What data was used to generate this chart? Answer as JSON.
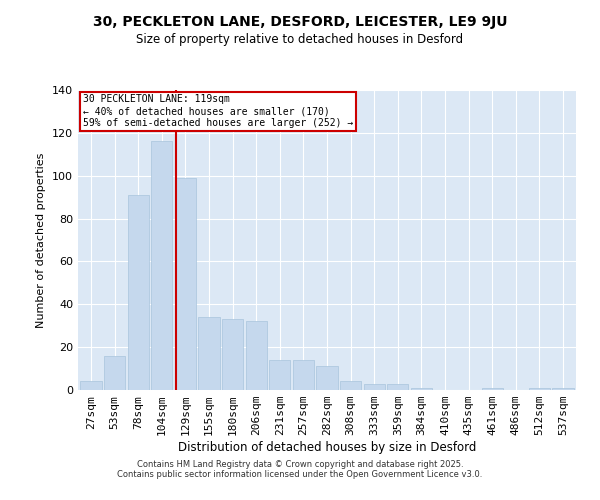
{
  "title": "30, PECKLETON LANE, DESFORD, LEICESTER, LE9 9JU",
  "subtitle": "Size of property relative to detached houses in Desford",
  "xlabel": "Distribution of detached houses by size in Desford",
  "ylabel": "Number of detached properties",
  "categories": [
    "27sqm",
    "53sqm",
    "78sqm",
    "104sqm",
    "129sqm",
    "155sqm",
    "180sqm",
    "206sqm",
    "231sqm",
    "257sqm",
    "282sqm",
    "308sqm",
    "333sqm",
    "359sqm",
    "384sqm",
    "410sqm",
    "435sqm",
    "461sqm",
    "486sqm",
    "512sqm",
    "537sqm"
  ],
  "values": [
    4,
    16,
    91,
    116,
    99,
    34,
    33,
    32,
    14,
    14,
    11,
    4,
    3,
    3,
    1,
    0,
    0,
    1,
    0,
    1,
    1
  ],
  "bar_color": "#c5d8ed",
  "bar_edge_color": "#a8c4dc",
  "bg_color": "#dce8f5",
  "plot_bg_color": "#dce8f5",
  "grid_color": "#ffffff",
  "annotation_title": "30 PECKLETON LANE: 119sqm",
  "annotation_line1": "← 40% of detached houses are smaller (170)",
  "annotation_line2": "59% of semi-detached houses are larger (252) →",
  "annotation_box_color": "#cc0000",
  "ylim": [
    0,
    140
  ],
  "yticks": [
    0,
    20,
    40,
    60,
    80,
    100,
    120,
    140
  ],
  "footer1": "Contains HM Land Registry data © Crown copyright and database right 2025.",
  "footer2": "Contains public sector information licensed under the Open Government Licence v3.0."
}
